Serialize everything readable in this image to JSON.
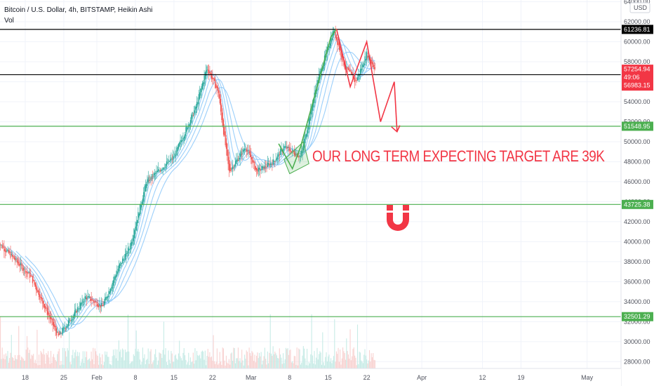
{
  "header": {
    "symbol_line": "Bitcoin / U.S. Dollar, 4h, BITSTAMP, Heikin Ashi",
    "volume_label": "Vol"
  },
  "annotation": {
    "text": "OUR LONG TERM EXPECTING TARGET ARE 39K",
    "color": "#f23645"
  },
  "logo": {
    "icon": "magnet-icon",
    "color": "#f23645"
  },
  "chart_data": {
    "type": "candlestick",
    "currency": "USD",
    "x_ticks": [
      "18",
      "25",
      "Feb",
      "8",
      "15",
      "22",
      "Mar",
      "8",
      "15",
      "22",
      "Apr",
      "12",
      "19",
      "May"
    ],
    "x_tick_days": [
      -13,
      -6,
      0,
      7,
      14,
      21,
      28,
      35,
      42,
      49,
      59,
      70,
      77,
      89
    ],
    "y_ticks": [
      28000,
      30000,
      32000,
      34000,
      36000,
      38000,
      40000,
      42000,
      44000,
      46000,
      48000,
      50000,
      52000,
      54000,
      56000,
      58000,
      60000,
      62000,
      64000
    ],
    "ylim": [
      27600,
      64600
    ],
    "horizontal_levels": [
      {
        "value": 61236.81,
        "label": "61236.81",
        "color": "#000000"
      },
      {
        "value": 57254.94,
        "label": "57254.94",
        "color": "#000000"
      },
      {
        "value": 56705.39,
        "label": "56705.39",
        "color": "#000000"
      },
      {
        "value": 51548.95,
        "label": "51548.95",
        "color": "#4caf50"
      },
      {
        "value": 43725.38,
        "label": "43725.38",
        "color": "#4caf50"
      },
      {
        "value": 32501.29,
        "label": "32501.29",
        "color": "#4caf50"
      }
    ],
    "price_tag": {
      "price": "57254.94",
      "countdown": "49:06",
      "second": "56983.15",
      "color": "#f23645"
    },
    "key_points": [
      {
        "day": -18,
        "price": 40000
      },
      {
        "day": -12,
        "price": 36500
      },
      {
        "day": -7,
        "price": 30500
      },
      {
        "day": -2,
        "price": 34500
      },
      {
        "day": 1,
        "price": 33500
      },
      {
        "day": 4,
        "price": 37500
      },
      {
        "day": 6,
        "price": 39500
      },
      {
        "day": 9,
        "price": 46000
      },
      {
        "day": 14,
        "price": 48500
      },
      {
        "day": 18,
        "price": 53500
      },
      {
        "day": 20,
        "price": 57500
      },
      {
        "day": 22,
        "price": 55000
      },
      {
        "day": 24,
        "price": 47000
      },
      {
        "day": 27,
        "price": 49500
      },
      {
        "day": 29,
        "price": 47000
      },
      {
        "day": 32,
        "price": 48000
      },
      {
        "day": 34,
        "price": 49500
      },
      {
        "day": 37,
        "price": 48500
      },
      {
        "day": 40,
        "price": 56000
      },
      {
        "day": 42,
        "price": 59500
      },
      {
        "day": 43,
        "price": 61200
      },
      {
        "day": 45,
        "price": 57500
      },
      {
        "day": 47,
        "price": 56000
      },
      {
        "day": 49,
        "price": 58800
      },
      {
        "day": 50.5,
        "price": 57300
      }
    ],
    "drawings": {
      "green_path": [
        {
          "day": 33,
          "price": 49800
        },
        {
          "day": 35.5,
          "price": 47300
        },
        {
          "day": 37,
          "price": 49500
        },
        {
          "day": 42.5,
          "price": 60500
        },
        {
          "day": 43.5,
          "price": 61300
        }
      ],
      "red_path": [
        {
          "day": 43.5,
          "price": 61300
        },
        {
          "day": 46,
          "price": 55500
        },
        {
          "day": 49,
          "price": 60000
        },
        {
          "day": 51.5,
          "price": 52000
        },
        {
          "day": 54,
          "price": 56000
        }
      ],
      "red_arrow_tip": {
        "day": 54.5,
        "price": 51000
      },
      "green_box": [
        {
          "day": 34,
          "price": 48200
        },
        {
          "day": 37.5,
          "price": 50000
        },
        {
          "day": 38.5,
          "price": 47800
        },
        {
          "day": 35,
          "price": 46800
        }
      ]
    },
    "colors": {
      "up": "#26a69a",
      "down": "#ef5350",
      "ma": "#90caf9",
      "grid": "#f0f3fa"
    }
  }
}
